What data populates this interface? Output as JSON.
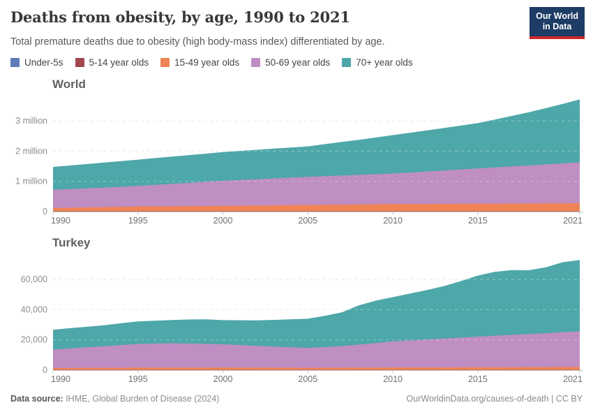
{
  "header": {
    "title": "Deaths from obesity, by age, 1990 to 2021",
    "subtitle": "Total premature deaths due to obesity (high body-mass index) differentiated by age.",
    "logo": {
      "line1": "Our World",
      "line2": "in Data"
    }
  },
  "colors": {
    "under5": "#5E7CB7",
    "age5_14": "#A2464E",
    "age15_49": "#EF8355",
    "age50_69": "#BF8EC3",
    "age70plus": "#4EA7A9",
    "logo_bg": "#1d3c66",
    "logo_bar": "#d0262c"
  },
  "chart_data": [
    {
      "type": "area",
      "entity": "World",
      "stacked": true,
      "grid": "dashed-horizontal",
      "years": [
        1990,
        1991,
        1992,
        1993,
        1994,
        1995,
        1996,
        1997,
        1998,
        1999,
        2000,
        2001,
        2002,
        2003,
        2004,
        2005,
        2006,
        2007,
        2008,
        2009,
        2010,
        2011,
        2012,
        2013,
        2014,
        2015,
        2016,
        2017,
        2018,
        2019,
        2020,
        2021
      ],
      "xticks": [
        "1990",
        "1995",
        "2000",
        "2005",
        "2010",
        "2015",
        "2021"
      ],
      "yticks": [
        {
          "value": 0,
          "label": "0"
        },
        {
          "value": 1000000,
          "label": "1 million"
        },
        {
          "value": 2000000,
          "label": "2 million"
        },
        {
          "value": 3000000,
          "label": "3 million"
        }
      ],
      "ylim": [
        0,
        3800000
      ],
      "series": [
        {
          "name": "Under-5s",
          "color": "#5E7CB7",
          "values": [
            2000,
            2000,
            2000,
            2000,
            2000,
            2000,
            2000,
            2000,
            2000,
            2000,
            2000,
            2000,
            2000,
            2000,
            2000,
            2000,
            2000,
            2000,
            2000,
            2000,
            2000,
            2000,
            2000,
            2000,
            2000,
            2000,
            2000,
            2000,
            2000,
            2000,
            2000,
            2000
          ]
        },
        {
          "name": "5-14 year olds",
          "color": "#A2464E",
          "values": [
            8000,
            8000,
            8000,
            8000,
            8000,
            8000,
            8000,
            8000,
            8000,
            8000,
            8000,
            8000,
            8000,
            8000,
            8000,
            8000,
            8000,
            8000,
            8000,
            8000,
            8000,
            8000,
            8000,
            8000,
            8000,
            8000,
            8000,
            8000,
            8000,
            8000,
            8000,
            8000
          ]
        },
        {
          "name": "15-49 year olds",
          "color": "#EF8355",
          "values": [
            108000,
            118000,
            128000,
            138000,
            148000,
            158000,
            162000,
            166000,
            170000,
            174000,
            178000,
            184000,
            190000,
            196000,
            202000,
            208000,
            214000,
            220000,
            226000,
            232000,
            238000,
            240000,
            242000,
            244000,
            246000,
            248000,
            251000,
            254000,
            257000,
            261000,
            264000,
            268000
          ]
        },
        {
          "name": "50-69 year olds",
          "color": "#BF8EC3",
          "values": [
            600000,
            615000,
            630000,
            647000,
            663000,
            680000,
            710000,
            740000,
            770000,
            800000,
            830000,
            850000,
            870000,
            890000,
            910000,
            930000,
            946000,
            962000,
            978000,
            994000,
            1010000,
            1042000,
            1074000,
            1106000,
            1138000,
            1170000,
            1200000,
            1230000,
            1260000,
            1290000,
            1320000,
            1350000
          ]
        },
        {
          "name": "70+ year olds",
          "color": "#4EA7A9",
          "values": [
            760000,
            782000,
            804000,
            826000,
            848000,
            870000,
            886000,
            902000,
            918000,
            934000,
            950000,
            962000,
            974000,
            986000,
            998000,
            1010000,
            1060000,
            1110000,
            1160000,
            1215000,
            1270000,
            1315000,
            1360000,
            1405000,
            1450000,
            1500000,
            1580000,
            1670000,
            1760000,
            1860000,
            1970000,
            2080000
          ]
        }
      ]
    },
    {
      "type": "area",
      "entity": "Turkey",
      "stacked": true,
      "grid": "dashed-horizontal",
      "years": [
        1990,
        1991,
        1992,
        1993,
        1994,
        1995,
        1996,
        1997,
        1998,
        1999,
        2000,
        2001,
        2002,
        2003,
        2004,
        2005,
        2006,
        2007,
        2008,
        2009,
        2010,
        2011,
        2012,
        2013,
        2014,
        2015,
        2016,
        2017,
        2018,
        2019,
        2020,
        2021
      ],
      "xticks": [
        "1990",
        "1995",
        "2000",
        "2005",
        "2010",
        "2015",
        "2021"
      ],
      "yticks": [
        {
          "value": 0,
          "label": "0"
        },
        {
          "value": 20000,
          "label": "20,000"
        },
        {
          "value": 40000,
          "label": "40,000"
        },
        {
          "value": 60000,
          "label": "60,000"
        }
      ],
      "ylim": [
        0,
        76000
      ],
      "series": [
        {
          "name": "Under-5s",
          "color": "#5E7CB7",
          "values": [
            30,
            30,
            30,
            30,
            30,
            30,
            30,
            30,
            30,
            30,
            30,
            30,
            30,
            30,
            30,
            30,
            30,
            30,
            30,
            30,
            30,
            30,
            30,
            30,
            30,
            30,
            30,
            30,
            30,
            30,
            30,
            30
          ]
        },
        {
          "name": "5-14 year olds",
          "color": "#A2464E",
          "values": [
            60,
            60,
            60,
            60,
            60,
            60,
            60,
            60,
            60,
            60,
            60,
            60,
            60,
            60,
            60,
            60,
            60,
            60,
            60,
            60,
            60,
            60,
            60,
            60,
            60,
            60,
            60,
            60,
            60,
            60,
            60,
            60
          ]
        },
        {
          "name": "15-49 year olds",
          "color": "#EF8355",
          "values": [
            1300,
            1350,
            1400,
            1450,
            1500,
            1550,
            1560,
            1570,
            1580,
            1590,
            1600,
            1580,
            1560,
            1540,
            1520,
            1500,
            1520,
            1540,
            1560,
            1580,
            1600,
            1620,
            1650,
            1680,
            1710,
            1740,
            1780,
            1820,
            1860,
            1900,
            1950,
            2000
          ]
        },
        {
          "name": "50-69 year olds",
          "color": "#BF8EC3",
          "values": [
            12200,
            12900,
            13600,
            14300,
            15000,
            15700,
            15900,
            16100,
            15900,
            15700,
            15400,
            14900,
            14400,
            13900,
            13500,
            13100,
            13600,
            14300,
            15200,
            16200,
            17300,
            17900,
            18500,
            19100,
            19700,
            20300,
            20900,
            21400,
            21900,
            22400,
            23000,
            23600
          ]
        },
        {
          "name": "70+ year olds",
          "color": "#4EA7A9",
          "values": [
            13100,
            13400,
            13600,
            13800,
            14400,
            14900,
            15100,
            15400,
            15900,
            16200,
            16000,
            16400,
            16900,
            17700,
            18500,
            19300,
            20700,
            22300,
            26000,
            28100,
            29300,
            31000,
            32700,
            34700,
            37400,
            40400,
            42200,
            42900,
            42200,
            43600,
            46300,
            47200
          ]
        }
      ]
    }
  ],
  "footer": {
    "source_label": "Data source:",
    "source_value": " IHME, Global Burden of Disease (2024)",
    "link": "OurWorldinData.org/causes-of-death",
    "license": " | CC BY"
  }
}
